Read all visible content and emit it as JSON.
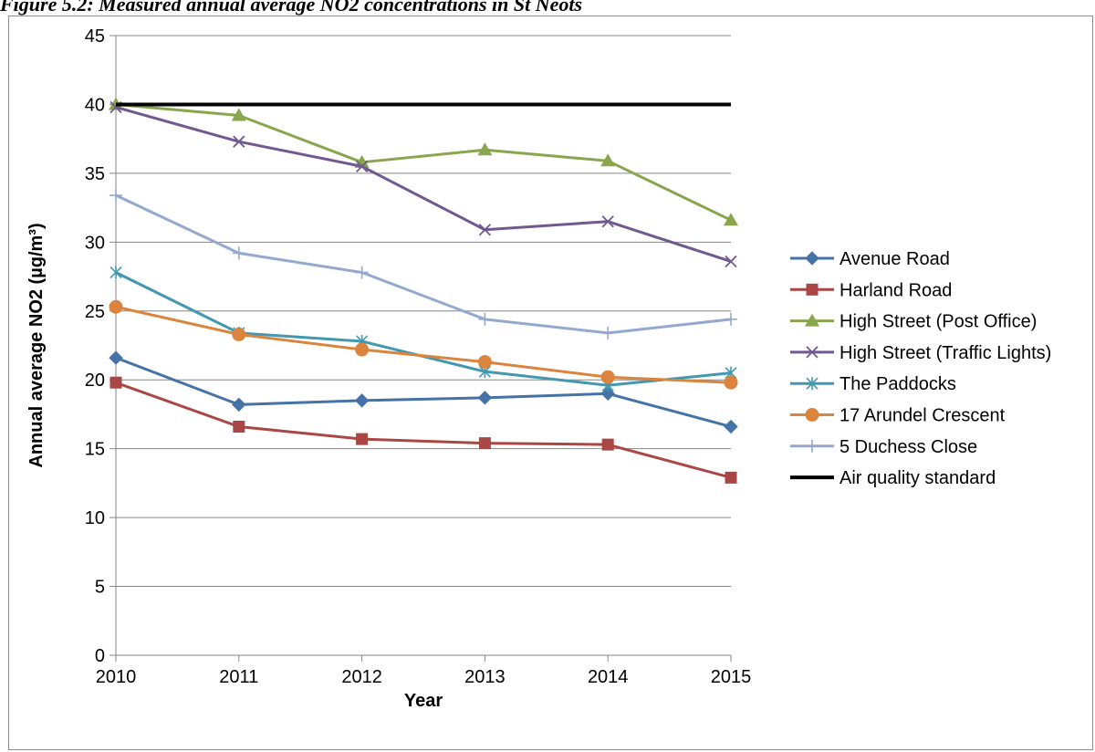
{
  "figure": {
    "title": "Figure 5.2: Measured annual average NO2 concentrations in St Neots"
  },
  "chart_data": {
    "type": "line",
    "title": "Figure 5.2: Measured annual average NO2 concentrations in St Neots",
    "xlabel": "Year",
    "ylabel": "Annual average NO2 (µg/m³)",
    "x": [
      2010,
      2011,
      2012,
      2013,
      2014,
      2015
    ],
    "xticks": [
      "2010",
      "2011",
      "2012",
      "2013",
      "2014",
      "2015"
    ],
    "ylim": [
      0,
      45
    ],
    "yticks": [
      0,
      5,
      10,
      15,
      20,
      25,
      30,
      35,
      40,
      45
    ],
    "grid": "horizontal",
    "legend_position": "right",
    "series": [
      {
        "name": "Avenue Road",
        "marker": "diamond",
        "color": "#4573a7",
        "values": [
          21.6,
          18.2,
          18.5,
          18.7,
          19.0,
          16.6
        ]
      },
      {
        "name": "Harland Road",
        "marker": "square",
        "color": "#aa4644",
        "values": [
          19.8,
          16.6,
          15.7,
          15.4,
          15.3,
          12.9
        ]
      },
      {
        "name": "High Street (Post Office)",
        "marker": "triangle",
        "color": "#89a54e",
        "values": [
          40.0,
          39.2,
          35.8,
          36.7,
          35.9,
          31.6
        ]
      },
      {
        "name": "High Street (Traffic Lights)",
        "marker": "x",
        "color": "#71588f",
        "values": [
          39.8,
          37.3,
          35.5,
          30.9,
          31.5,
          28.6
        ]
      },
      {
        "name": "The Paddocks",
        "marker": "star",
        "color": "#4298af",
        "values": [
          27.8,
          23.4,
          22.8,
          20.6,
          19.6,
          20.5
        ]
      },
      {
        "name": "17 Arundel Crescent",
        "marker": "circle",
        "color": "#db843d",
        "values": [
          25.3,
          23.3,
          22.2,
          21.3,
          20.2,
          19.8
        ]
      },
      {
        "name": "5 Duchess Close",
        "marker": "plus",
        "color": "#93a9cf",
        "values": [
          33.4,
          29.2,
          27.8,
          24.4,
          23.4,
          24.4
        ]
      },
      {
        "name": "Air quality standard",
        "marker": "none",
        "color": "#000000",
        "values": [
          40,
          40,
          40,
          40,
          40,
          40
        ]
      }
    ]
  }
}
